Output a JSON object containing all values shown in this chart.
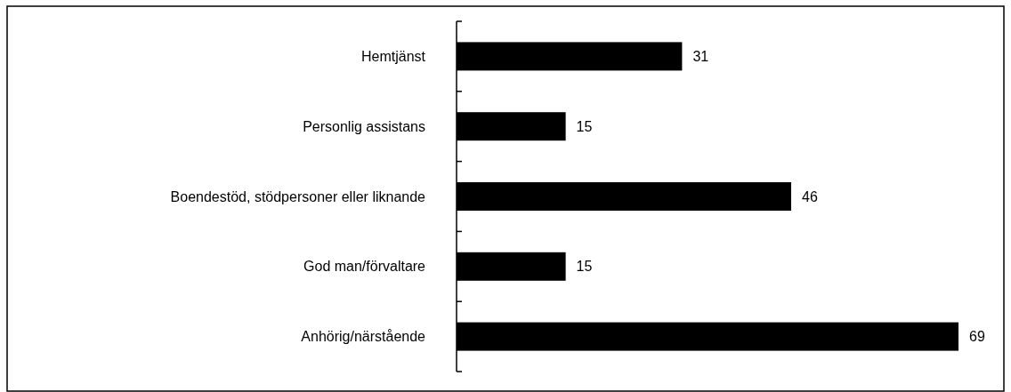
{
  "chart_data": {
    "type": "bar",
    "orientation": "horizontal",
    "categories": [
      "Hemtjänst",
      "Personlig assistans",
      "Boendestöd, stödpersoner eller liknande",
      "God man/förvaltare",
      "Anhörig/närstående"
    ],
    "values": [
      31,
      15,
      46,
      15,
      69
    ],
    "color": "#000000",
    "data_labels": true
  }
}
